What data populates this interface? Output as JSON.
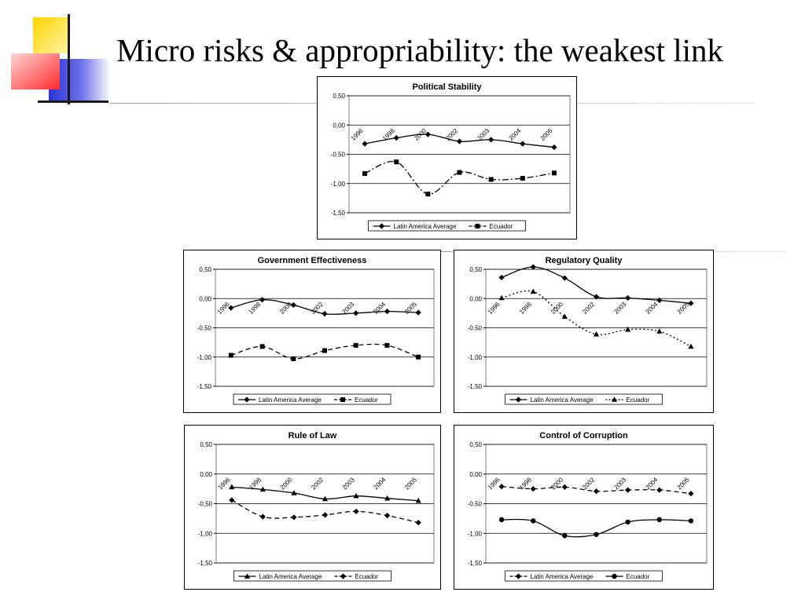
{
  "slide": {
    "title": "Micro risks & appropriability: the weakest link"
  },
  "chart_data": [
    {
      "type": "line",
      "title": "Political Stability",
      "categories": [
        "1996",
        "1998",
        "2000",
        "2002",
        "2003",
        "2004",
        "2005"
      ],
      "ylim": [
        -1.5,
        0.5
      ],
      "yticks": [
        "0,50",
        "0,00",
        "-0,50",
        "-1,00",
        "-1,50"
      ],
      "grid": true,
      "legend_position": "bottom",
      "series": [
        {
          "name": "Latin America Average",
          "marker": "diamond",
          "dash": "solid",
          "values": [
            -0.32,
            -0.22,
            -0.16,
            -0.28,
            -0.25,
            -0.32,
            -0.38
          ]
        },
        {
          "name": "Ecuador",
          "marker": "square",
          "dash": "dashdot",
          "values": [
            -0.83,
            -0.63,
            -1.18,
            -0.81,
            -0.93,
            -0.91,
            -0.82
          ]
        }
      ]
    },
    {
      "type": "line",
      "title": "Government Effectiveness",
      "categories": [
        "1996",
        "1998",
        "2000",
        "2002",
        "2003",
        "2004",
        "2005"
      ],
      "ylim": [
        -1.5,
        0.5
      ],
      "yticks": [
        "0,50",
        "0,00",
        "-0,50",
        "-1,00",
        "-1,50"
      ],
      "grid": true,
      "legend_position": "bottom",
      "series": [
        {
          "name": "Latin America Average",
          "marker": "diamond",
          "dash": "solid",
          "values": [
            -0.16,
            -0.02,
            -0.11,
            -0.26,
            -0.25,
            -0.22,
            -0.24
          ]
        },
        {
          "name": "Ecuador",
          "marker": "square",
          "dash": "dash",
          "values": [
            -0.97,
            -0.82,
            -1.03,
            -0.89,
            -0.8,
            -0.8,
            -1.0
          ]
        }
      ]
    },
    {
      "type": "line",
      "title": "Regulatory Quality",
      "categories": [
        "1996",
        "1998",
        "2000",
        "2002",
        "2003",
        "2004",
        "2005"
      ],
      "ylim": [
        -1.5,
        0.5
      ],
      "yticks": [
        "0,50",
        "0,00",
        "-0,50",
        "-1,00",
        "-1,50"
      ],
      "grid": true,
      "legend_position": "bottom",
      "series": [
        {
          "name": "Latin America Average",
          "marker": "diamond",
          "dash": "solid",
          "values": [
            0.36,
            0.54,
            0.35,
            0.03,
            0.01,
            -0.03,
            -0.08
          ]
        },
        {
          "name": "Ecuador",
          "marker": "triangle",
          "dash": "dot",
          "values": [
            0.01,
            0.12,
            -0.31,
            -0.61,
            -0.53,
            -0.56,
            -0.82
          ]
        }
      ]
    },
    {
      "type": "line",
      "title": "Rule of Law",
      "categories": [
        "1996",
        "1998",
        "2000",
        "2002",
        "2003",
        "2004",
        "2005"
      ],
      "ylim": [
        -1.5,
        0.5
      ],
      "yticks": [
        "0,50",
        "0,00",
        "-0,50",
        "-1,00",
        "-1,50"
      ],
      "grid": true,
      "legend_position": "bottom",
      "series": [
        {
          "name": "Latin America Average",
          "marker": "triangle",
          "dash": "solid",
          "values": [
            -0.22,
            -0.26,
            -0.32,
            -0.42,
            -0.37,
            -0.41,
            -0.45
          ]
        },
        {
          "name": "Ecuador",
          "marker": "diamond",
          "dash": "dash",
          "values": [
            -0.44,
            -0.72,
            -0.73,
            -0.69,
            -0.63,
            -0.7,
            -0.82
          ]
        }
      ]
    },
    {
      "type": "line",
      "title": "Control of Corruption",
      "categories": [
        "1996",
        "1998",
        "2000",
        "2002",
        "2003",
        "2004",
        "2005"
      ],
      "ylim": [
        -1.5,
        0.5
      ],
      "yticks": [
        "0,50",
        "0,00",
        "-0,50",
        "-1,00",
        "-1,50"
      ],
      "grid": true,
      "legend_position": "bottom",
      "series": [
        {
          "name": "Latin America Average",
          "marker": "diamond",
          "dash": "dash",
          "values": [
            -0.21,
            -0.25,
            -0.22,
            -0.29,
            -0.27,
            -0.27,
            -0.33
          ]
        },
        {
          "name": "Ecuador",
          "marker": "circle",
          "dash": "solid",
          "values": [
            -0.77,
            -0.79,
            -1.04,
            -1.02,
            -0.81,
            -0.77,
            -0.79
          ]
        }
      ]
    }
  ]
}
